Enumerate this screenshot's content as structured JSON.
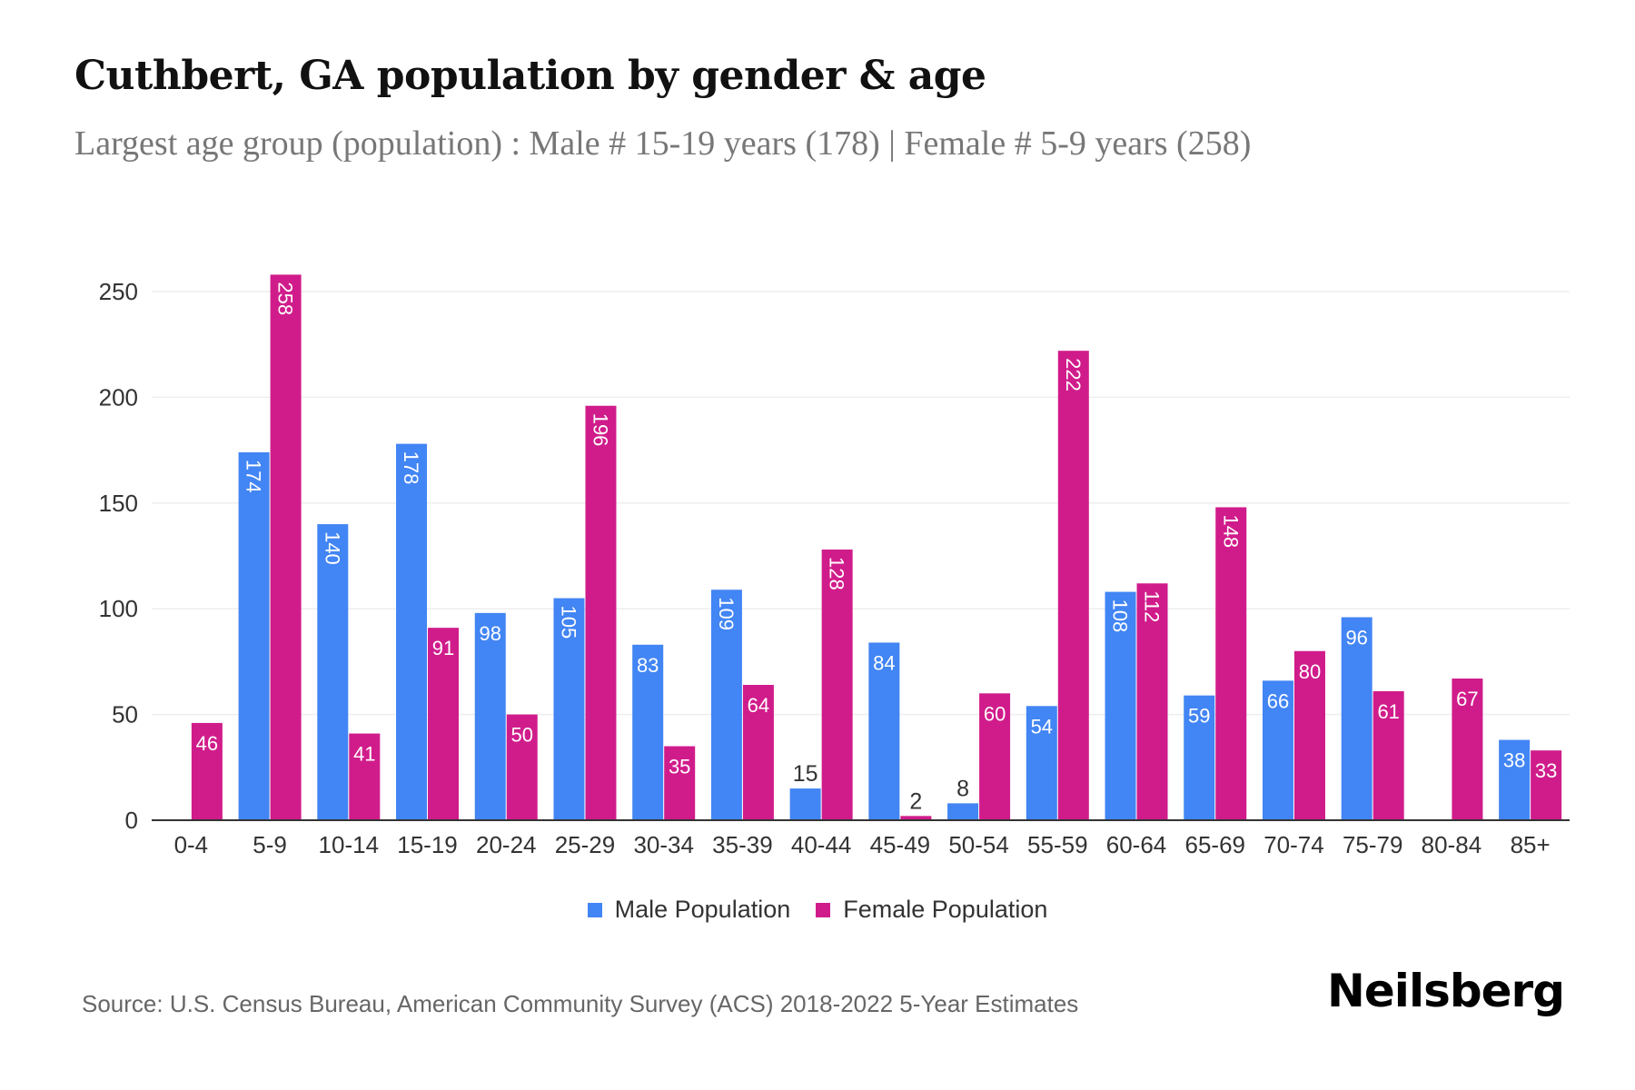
{
  "title": "Cuthbert, GA population by gender & age",
  "subtitle": "Largest age group (population) : Male # 15-19 years (178) | Female # 5-9 years (258)",
  "source": "Source: U.S. Census Bureau, American Community Survey (ACS) 2018-2022 5-Year Estimates",
  "logo": "Neilsberg",
  "chart_data": {
    "type": "bar",
    "title": "Cuthbert, GA population by gender & age",
    "categories": [
      "0-4",
      "5-9",
      "10-14",
      "15-19",
      "20-24",
      "25-29",
      "30-34",
      "35-39",
      "40-44",
      "45-49",
      "50-54",
      "55-59",
      "60-64",
      "65-69",
      "70-74",
      "75-79",
      "80-84",
      "85+"
    ],
    "series": [
      {
        "name": "Male Population",
        "color": "#4285f4",
        "values": [
          0,
          174,
          140,
          178,
          98,
          105,
          83,
          109,
          15,
          84,
          8,
          54,
          108,
          59,
          66,
          96,
          0,
          38
        ]
      },
      {
        "name": "Female Population",
        "color": "#d01c8b",
        "values": [
          46,
          258,
          41,
          91,
          50,
          196,
          35,
          64,
          128,
          2,
          60,
          222,
          112,
          148,
          80,
          61,
          67,
          33
        ]
      }
    ],
    "ylim": [
      0,
      260
    ],
    "yticks": [
      0,
      50,
      100,
      150,
      200,
      250
    ],
    "grid": true,
    "legend": "bottom"
  }
}
